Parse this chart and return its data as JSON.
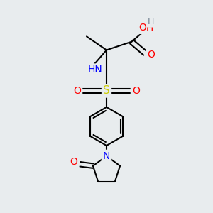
{
  "bg_color": "#e8ecee",
  "atom_colors": {
    "C": "#000000",
    "H": "#708090",
    "N": "#0000ff",
    "O": "#ff0000",
    "S": "#cccc00"
  },
  "bond_color": "#000000",
  "bond_width": 1.5,
  "font_size_atoms": 10,
  "fig_w": 3.0,
  "fig_h": 3.0,
  "dpi": 100
}
